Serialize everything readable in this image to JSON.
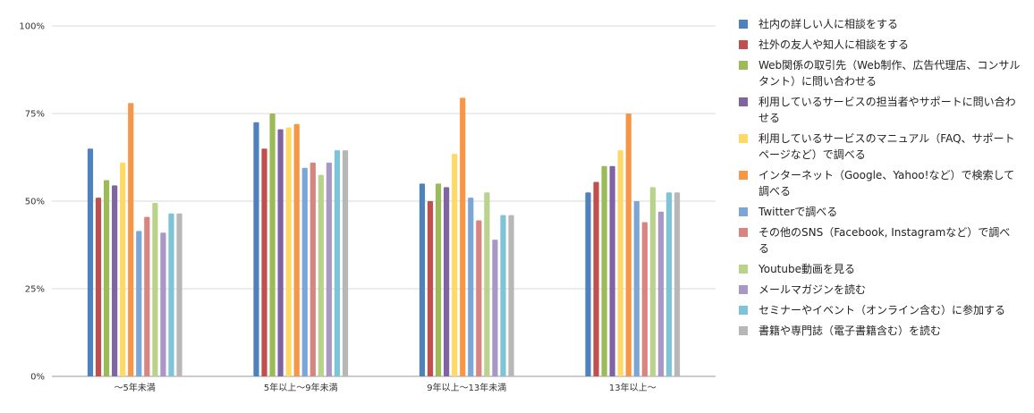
{
  "chart_data": {
    "type": "bar",
    "categories": [
      "〜5年未満",
      "5年以上〜9年未満",
      "9年以上〜13年未満",
      "13年以上〜"
    ],
    "ylim": [
      0,
      100
    ],
    "yticks": [
      0,
      25,
      50,
      75,
      100
    ],
    "ytick_labels": [
      "0%",
      "25%",
      "50%",
      "75%",
      "100%"
    ],
    "grid": true,
    "legend_position": "right",
    "series": [
      {
        "name": "社内の詳しい人に相談をする",
        "color": "#4F81BD",
        "values": [
          65,
          72.5,
          55,
          52.5
        ]
      },
      {
        "name": "社外の友人や知人に相談をする",
        "color": "#C0504D",
        "values": [
          51,
          65,
          50,
          55.5
        ]
      },
      {
        "name": "Web関係の取引先（Web制作、広告代理店、コンサルタント）に問い合わせる",
        "color": "#9BBB59",
        "values": [
          56,
          75,
          55,
          60
        ]
      },
      {
        "name": "利用しているサービスの担当者やサポートに問い合わせる",
        "color": "#8064A2",
        "values": [
          54.5,
          70.5,
          54,
          60
        ]
      },
      {
        "name": "利用しているサービスのマニュアル（FAQ、サポートページなど）で調べる",
        "color": "#FFD966",
        "values": [
          61,
          71,
          63.5,
          64.5
        ]
      },
      {
        "name": "インターネット（Google、Yahoo!など）で検索して調べる",
        "color": "#F79646",
        "values": [
          78,
          72,
          79.5,
          75
        ]
      },
      {
        "name": "Twitterで調べる",
        "color": "#7BA7D7",
        "values": [
          41.5,
          59.5,
          51,
          50
        ]
      },
      {
        "name": "その他のSNS（Facebook, Instagramなど）で調べる",
        "color": "#D8847F",
        "values": [
          45.5,
          61,
          44.5,
          44
        ]
      },
      {
        "name": "Youtube動画を見る",
        "color": "#B9D38C",
        "values": [
          49.5,
          57.5,
          52.5,
          54
        ]
      },
      {
        "name": "メールマガジンを読む",
        "color": "#A997C5",
        "values": [
          41,
          61,
          39,
          47
        ]
      },
      {
        "name": "セミナーやイベント（オンライン含む）に参加する",
        "color": "#7EC4D8",
        "values": [
          46.5,
          64.5,
          46,
          52.5
        ]
      },
      {
        "name": "書籍や専門誌（電子書籍含む）を読む",
        "color": "#B7B7B7",
        "values": [
          46.5,
          64.5,
          46,
          52.5
        ]
      }
    ]
  }
}
